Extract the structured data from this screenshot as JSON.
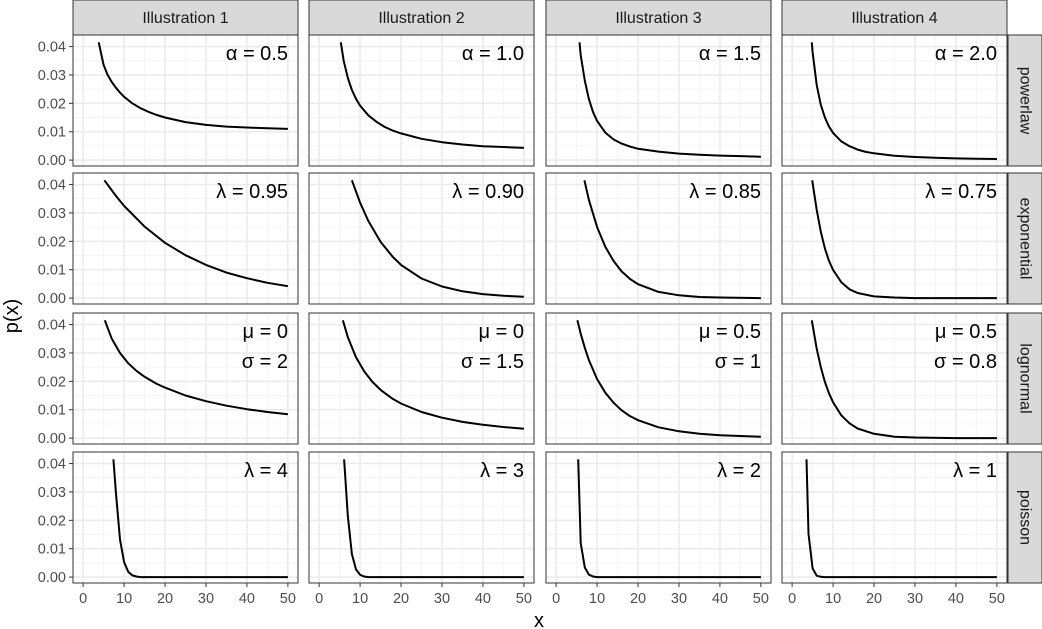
{
  "chart_data": {
    "type": "line",
    "facet_rows": [
      "powerlaw",
      "exponential",
      "lognormal",
      "poisson"
    ],
    "facet_cols": [
      "Illustration 1",
      "Illustration 2",
      "Illustration 3",
      "Illustration 4"
    ],
    "xlabel": "x",
    "ylabel": "p(x)",
    "xlim": [
      0,
      50
    ],
    "ylim": [
      0,
      0.042
    ],
    "x_ticks": [
      "0",
      "10",
      "20",
      "30",
      "40",
      "50"
    ],
    "y_ticks": [
      "0.00",
      "0.01",
      "0.02",
      "0.03",
      "0.04"
    ],
    "grid": true,
    "theme": "bw",
    "colors": {
      "line": "#000000",
      "strip_fill": "#d9d9d9",
      "strip_border": "#333333",
      "grid_major": "#ebebeb",
      "grid_minor": "#f4f4f4",
      "panel_border": "#333333",
      "tick_text": "#4d4d4d"
    },
    "panels": [
      {
        "row": "powerlaw",
        "col": "Illustration 1",
        "annotation": [
          "α = 0.5"
        ],
        "x": [
          3.8,
          5,
          6,
          7,
          8,
          9,
          10,
          12,
          14,
          16,
          18,
          20,
          25,
          30,
          35,
          40,
          45,
          50
        ],
        "y": [
          0.0415,
          0.0335,
          0.03,
          0.0275,
          0.0255,
          0.0238,
          0.0223,
          0.02,
          0.0183,
          0.017,
          0.0159,
          0.015,
          0.0134,
          0.0124,
          0.0118,
          0.0115,
          0.0112,
          0.011
        ]
      },
      {
        "row": "powerlaw",
        "col": "Illustration 2",
        "annotation": [
          "α = 1.0"
        ],
        "x": [
          5.3,
          6,
          7,
          8,
          9,
          10,
          12,
          14,
          16,
          18,
          20,
          25,
          30,
          35,
          40,
          45,
          50
        ],
        "y": [
          0.0415,
          0.035,
          0.029,
          0.0247,
          0.0216,
          0.0192,
          0.0158,
          0.0135,
          0.0117,
          0.0104,
          0.0094,
          0.0075,
          0.0063,
          0.0055,
          0.0049,
          0.0046,
          0.0043
        ]
      },
      {
        "row": "powerlaw",
        "col": "Illustration 3",
        "annotation": [
          "α = 1.5"
        ],
        "x": [
          5.7,
          6,
          7,
          8,
          9,
          10,
          12,
          14,
          16,
          18,
          20,
          25,
          30,
          35,
          40,
          45,
          50
        ],
        "y": [
          0.0415,
          0.037,
          0.028,
          0.0215,
          0.017,
          0.0138,
          0.0097,
          0.0073,
          0.0058,
          0.0048,
          0.004,
          0.003,
          0.0023,
          0.0019,
          0.0016,
          0.0014,
          0.0012
        ]
      },
      {
        "row": "powerlaw",
        "col": "Illustration 4",
        "annotation": [
          "α = 2.0"
        ],
        "x": [
          4.8,
          5,
          6,
          7,
          8,
          9,
          10,
          12,
          14,
          16,
          18,
          20,
          25,
          30,
          35,
          40,
          45,
          50
        ],
        "y": [
          0.0415,
          0.038,
          0.0265,
          0.0195,
          0.015,
          0.0118,
          0.0096,
          0.0066,
          0.0049,
          0.0037,
          0.0029,
          0.0024,
          0.0015,
          0.0011,
          0.0008,
          0.0006,
          0.0005,
          0.0004
        ]
      },
      {
        "row": "exponential",
        "col": "Illustration 1",
        "annotation": [
          "λ = 0.95"
        ],
        "x": [
          5.2,
          8,
          10,
          15,
          20,
          25,
          30,
          35,
          40,
          45,
          50
        ],
        "y": [
          0.0415,
          0.036,
          0.0325,
          0.0252,
          0.0195,
          0.0151,
          0.0117,
          0.009,
          0.007,
          0.0054,
          0.0042
        ]
      },
      {
        "row": "exponential",
        "col": "Illustration 2",
        "annotation": [
          "λ = 0.90"
        ],
        "x": [
          8.0,
          10,
          12,
          15,
          18,
          20,
          25,
          30,
          35,
          40,
          45,
          50
        ],
        "y": [
          0.0415,
          0.0336,
          0.0272,
          0.0198,
          0.0145,
          0.0117,
          0.0069,
          0.0041,
          0.0024,
          0.0014,
          0.0008,
          0.0005
        ]
      },
      {
        "row": "exponential",
        "col": "Illustration 3",
        "annotation": [
          "λ = 0.85"
        ],
        "x": [
          6.9,
          8,
          10,
          12,
          14,
          16,
          18,
          20,
          25,
          30,
          35,
          40,
          50
        ],
        "y": [
          0.0415,
          0.0346,
          0.025,
          0.0181,
          0.0131,
          0.0094,
          0.0068,
          0.0049,
          0.0022,
          0.001,
          0.0004,
          0.0002,
          0.0
        ]
      },
      {
        "row": "exponential",
        "col": "Illustration 4",
        "annotation": [
          "λ = 0.75"
        ],
        "x": [
          4.9,
          6,
          7,
          8,
          9,
          10,
          12,
          14,
          16,
          20,
          25,
          30,
          40,
          50
        ],
        "y": [
          0.0415,
          0.0311,
          0.0234,
          0.0175,
          0.0131,
          0.0099,
          0.0056,
          0.0031,
          0.0018,
          0.0006,
          0.0002,
          0.0,
          0.0,
          0.0
        ]
      },
      {
        "row": "lognormal",
        "col": "Illustration 1",
        "annotation": [
          "μ = 0",
          "σ = 2"
        ],
        "x": [
          5.3,
          7,
          9,
          11,
          13,
          15,
          18,
          20,
          25,
          30,
          35,
          40,
          45,
          50
        ],
        "y": [
          0.0415,
          0.035,
          0.03,
          0.0264,
          0.0237,
          0.0216,
          0.0191,
          0.0178,
          0.015,
          0.013,
          0.0114,
          0.0102,
          0.0092,
          0.0084
        ]
      },
      {
        "row": "lognormal",
        "col": "Illustration 2",
        "annotation": [
          "μ = 0",
          "σ = 1.5"
        ],
        "x": [
          5.8,
          7,
          9,
          11,
          13,
          15,
          18,
          20,
          25,
          30,
          35,
          40,
          45,
          50
        ],
        "y": [
          0.0415,
          0.0356,
          0.0285,
          0.0235,
          0.0198,
          0.017,
          0.0138,
          0.0122,
          0.0092,
          0.0072,
          0.0057,
          0.0047,
          0.0039,
          0.0033
        ]
      },
      {
        "row": "lognormal",
        "col": "Illustration 3",
        "annotation": [
          "μ = 0.5",
          "σ = 1"
        ],
        "x": [
          5.2,
          6,
          7,
          8,
          10,
          12,
          14,
          16,
          18,
          20,
          25,
          30,
          35,
          40,
          50
        ],
        "y": [
          0.0415,
          0.0368,
          0.0318,
          0.0275,
          0.0208,
          0.016,
          0.0125,
          0.0098,
          0.0078,
          0.0063,
          0.0038,
          0.0024,
          0.0015,
          0.001,
          0.0005
        ]
      },
      {
        "row": "lognormal",
        "col": "Illustration 4",
        "annotation": [
          "μ = 0.5",
          "σ = 0.8"
        ],
        "x": [
          4.8,
          6,
          7,
          8,
          9,
          10,
          12,
          14,
          16,
          20,
          25,
          30,
          40,
          50
        ],
        "y": [
          0.0415,
          0.0315,
          0.025,
          0.0198,
          0.0158,
          0.0126,
          0.008,
          0.0052,
          0.0034,
          0.0015,
          0.0005,
          0.0002,
          0.0,
          0.0
        ]
      },
      {
        "row": "poisson",
        "col": "Illustration 1",
        "annotation": [
          "λ = 4"
        ],
        "x": [
          7.4,
          8,
          9,
          10,
          11,
          12,
          13,
          14,
          15,
          20,
          30,
          40,
          50
        ],
        "y": [
          0.0415,
          0.0298,
          0.0132,
          0.0053,
          0.0019,
          0.0006,
          0.0002,
          0.0,
          0.0,
          0.0,
          0.0,
          0.0,
          0.0
        ]
      },
      {
        "row": "poisson",
        "col": "Illustration 2",
        "annotation": [
          "λ = 3"
        ],
        "x": [
          6.1,
          7,
          8,
          9,
          10,
          11,
          12,
          13,
          20,
          30,
          40,
          50
        ],
        "y": [
          0.0415,
          0.0216,
          0.0081,
          0.0027,
          0.0008,
          0.0002,
          0.0,
          0.0,
          0.0,
          0.0,
          0.0,
          0.0
        ]
      },
      {
        "row": "poisson",
        "col": "Illustration 3",
        "annotation": [
          "λ = 2"
        ],
        "x": [
          5.4,
          6,
          7,
          8,
          9,
          10,
          15,
          20,
          30,
          40,
          50
        ],
        "y": [
          0.0415,
          0.012,
          0.0034,
          0.0009,
          0.0002,
          0.0,
          0.0,
          0.0,
          0.0,
          0.0,
          0.0
        ]
      },
      {
        "row": "poisson",
        "col": "Illustration 4",
        "annotation": [
          "λ = 1"
        ],
        "x": [
          3.5,
          4,
          5,
          6,
          7,
          8,
          10,
          20,
          30,
          40,
          50
        ],
        "y": [
          0.0415,
          0.0153,
          0.0031,
          0.0005,
          0.0001,
          0.0,
          0.0,
          0.0,
          0.0,
          0.0,
          0.0
        ]
      }
    ]
  }
}
